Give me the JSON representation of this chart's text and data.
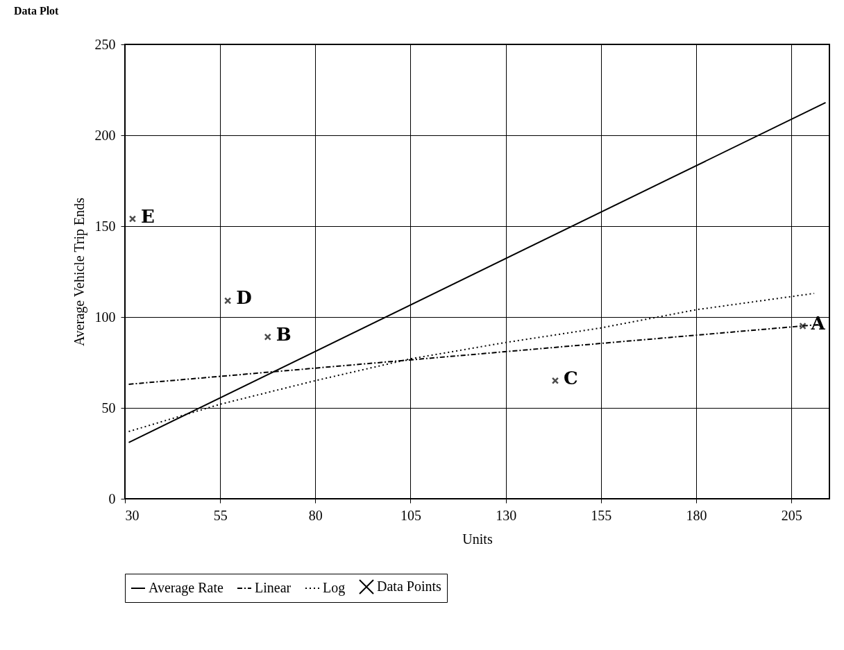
{
  "chart_data": {
    "type": "line",
    "title": "Data Plot",
    "xlabel": "Units",
    "ylabel": "Average Vehicle Trip Ends",
    "xlim": [
      30,
      215
    ],
    "xticks": [
      30,
      55,
      80,
      105,
      130,
      155,
      180,
      205
    ],
    "ylim": [
      0,
      250
    ],
    "yticks": [
      0,
      50,
      100,
      150,
      200,
      250
    ],
    "grid": true,
    "legend": "bottom",
    "series": [
      {
        "name": "Average Rate",
        "type": "line",
        "color": "#000000",
        "line_style": "solid",
        "x": [
          31,
          214
        ],
        "values": [
          31,
          218
        ]
      },
      {
        "name": "Linear",
        "type": "line",
        "color": "#000000",
        "line_style": "dashed",
        "x": [
          31,
          213
        ],
        "values": [
          63,
          96
        ]
      },
      {
        "name": "Log",
        "type": "line",
        "color": "#000000",
        "line_style": "dotted",
        "x": [
          31,
          55,
          80,
          105,
          130,
          155,
          180,
          211
        ],
        "values": [
          37,
          52,
          65,
          77,
          86,
          94,
          104,
          113
        ]
      },
      {
        "name": "Data Points",
        "type": "scatter",
        "color": "#000000",
        "marker": "cross",
        "x": [
          208,
          67.5,
          143,
          57,
          32
        ],
        "values": [
          95,
          89,
          65,
          109,
          154
        ]
      }
    ],
    "annotations": [
      {
        "text": "A",
        "x": 208,
        "y": 95
      },
      {
        "text": "B",
        "x": 67.5,
        "y": 89
      },
      {
        "text": "C",
        "x": 143,
        "y": 65
      },
      {
        "text": "D",
        "x": 57,
        "y": 109
      },
      {
        "text": "E",
        "x": 32,
        "y": 154
      }
    ]
  }
}
